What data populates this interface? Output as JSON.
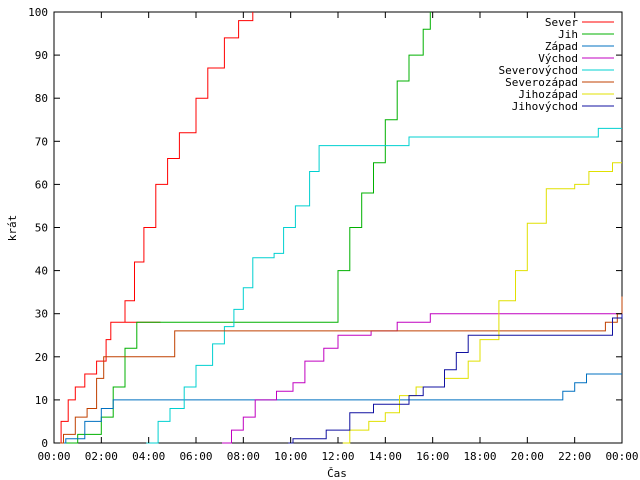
{
  "chart_data": {
    "type": "line",
    "title": "",
    "xlabel": "Čas",
    "ylabel": "krát",
    "ylim": [
      0,
      100
    ],
    "xlim": [
      0,
      24
    ],
    "x_ticks": [
      "00:00",
      "02:00",
      "04:00",
      "06:00",
      "08:00",
      "10:00",
      "12:00",
      "14:00",
      "16:00",
      "18:00",
      "20:00",
      "22:00",
      "00:00"
    ],
    "y_ticks": [
      "0",
      "10",
      "20",
      "30",
      "40",
      "50",
      "60",
      "70",
      "80",
      "90",
      "100"
    ],
    "grid": false,
    "legend_position": "top-right",
    "series": [
      {
        "name": "Sever",
        "color": "#ff0000",
        "points": [
          [
            0,
            0
          ],
          [
            0.3,
            5
          ],
          [
            0.6,
            10
          ],
          [
            0.9,
            13
          ],
          [
            1.3,
            16
          ],
          [
            1.8,
            19
          ],
          [
            2.2,
            24
          ],
          [
            2.4,
            28
          ],
          [
            4.5,
            28
          ],
          [
            3,
            33
          ],
          [
            3.4,
            42
          ],
          [
            3.8,
            50
          ],
          [
            4.3,
            60
          ],
          [
            4.8,
            66
          ],
          [
            5.3,
            72
          ],
          [
            6,
            80
          ],
          [
            6.5,
            87
          ],
          [
            7.2,
            94
          ],
          [
            7.8,
            98
          ],
          [
            8.4,
            100
          ]
        ]
      },
      {
        "name": "Jih",
        "color": "#00b000",
        "points": [
          [
            0,
            0
          ],
          [
            1,
            2
          ],
          [
            2,
            6
          ],
          [
            2.5,
            13
          ],
          [
            3,
            22
          ],
          [
            3.5,
            28
          ],
          [
            11.5,
            28
          ],
          [
            12,
            40
          ],
          [
            12.5,
            50
          ],
          [
            13,
            58
          ],
          [
            13.5,
            65
          ],
          [
            14,
            75
          ],
          [
            14.5,
            84
          ],
          [
            15,
            90
          ],
          [
            15.6,
            96
          ],
          [
            15.9,
            100
          ]
        ]
      },
      {
        "name": "Západ",
        "color": "#0070c0",
        "points": [
          [
            0,
            0
          ],
          [
            0.5,
            1
          ],
          [
            1.3,
            5
          ],
          [
            2,
            8
          ],
          [
            2.5,
            10
          ],
          [
            21,
            10
          ],
          [
            21.5,
            12
          ],
          [
            22,
            14
          ],
          [
            22.5,
            16
          ],
          [
            24,
            16
          ]
        ]
      },
      {
        "name": "Východ",
        "color": "#c000c0",
        "points": [
          [
            7.1,
            0
          ],
          [
            7.5,
            3
          ],
          [
            8,
            6
          ],
          [
            8.5,
            10
          ],
          [
            9.4,
            12
          ],
          [
            10.1,
            14
          ],
          [
            10.6,
            19
          ],
          [
            11.4,
            22
          ],
          [
            12,
            25
          ],
          [
            13.4,
            26
          ],
          [
            14.5,
            28
          ],
          [
            15.9,
            30
          ],
          [
            24,
            30
          ]
        ]
      },
      {
        "name": "Severovýchod",
        "color": "#00d0d0",
        "points": [
          [
            3.9,
            0
          ],
          [
            4.4,
            5
          ],
          [
            4.9,
            8
          ],
          [
            5.5,
            13
          ],
          [
            6,
            18
          ],
          [
            6.7,
            23
          ],
          [
            7.2,
            27
          ],
          [
            7.6,
            31
          ],
          [
            8,
            36
          ],
          [
            8.4,
            43
          ],
          [
            9.3,
            44
          ],
          [
            9.7,
            50
          ],
          [
            10.2,
            55
          ],
          [
            10.8,
            63
          ],
          [
            11.2,
            69
          ],
          [
            14.9,
            69
          ],
          [
            15,
            71
          ],
          [
            22.5,
            71
          ],
          [
            23,
            73
          ],
          [
            24,
            73
          ]
        ]
      },
      {
        "name": "Severozápad",
        "color": "#c04000",
        "points": [
          [
            0,
            0
          ],
          [
            0.4,
            2
          ],
          [
            0.9,
            6
          ],
          [
            1.4,
            8
          ],
          [
            1.8,
            15
          ],
          [
            2.1,
            20
          ],
          [
            4.8,
            20
          ],
          [
            5.1,
            26
          ],
          [
            23,
            26
          ],
          [
            23.3,
            28
          ],
          [
            23.8,
            30
          ],
          [
            24,
            34
          ]
        ]
      },
      {
        "name": "Jihozápad",
        "color": "#e0e000",
        "points": [
          [
            12.2,
            0
          ],
          [
            12.5,
            3
          ],
          [
            13.3,
            5
          ],
          [
            14,
            7
          ],
          [
            14.6,
            11
          ],
          [
            15.3,
            13
          ],
          [
            16.5,
            15
          ],
          [
            17.5,
            19
          ],
          [
            18,
            24
          ],
          [
            18.8,
            33
          ],
          [
            19.5,
            40
          ],
          [
            20,
            51
          ],
          [
            20.8,
            59
          ],
          [
            22,
            60
          ],
          [
            22.6,
            63
          ],
          [
            23.6,
            65
          ],
          [
            24,
            65
          ]
        ]
      },
      {
        "name": "Jihovýchod",
        "color": "#1010a0",
        "points": [
          [
            9.9,
            0
          ],
          [
            10.1,
            1
          ],
          [
            11.5,
            3
          ],
          [
            12.5,
            7
          ],
          [
            13.5,
            9
          ],
          [
            15,
            11
          ],
          [
            15.6,
            13
          ],
          [
            16.5,
            17
          ],
          [
            17,
            21
          ],
          [
            17.5,
            25
          ],
          [
            23.2,
            25
          ],
          [
            23.6,
            29
          ],
          [
            24,
            30
          ]
        ]
      }
    ]
  }
}
